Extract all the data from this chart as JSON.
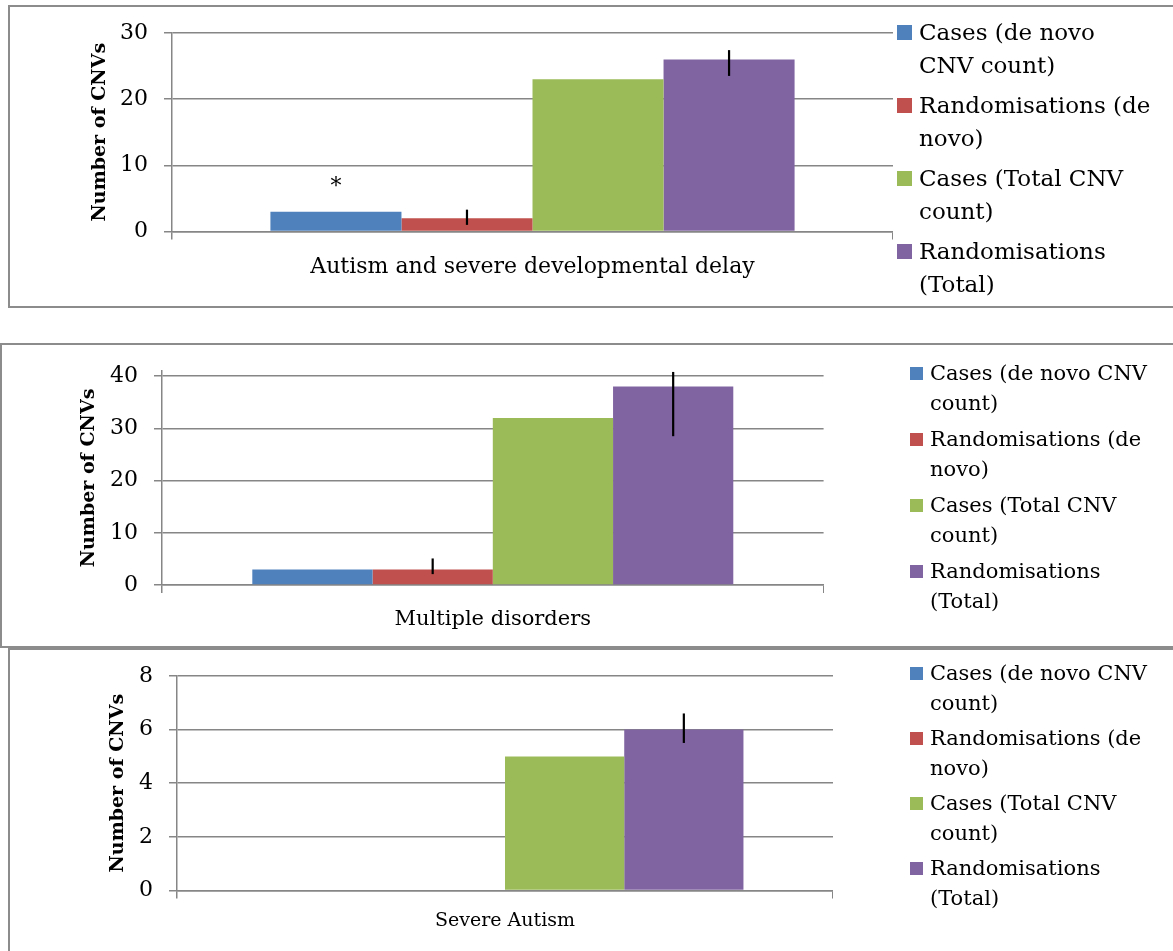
{
  "chart_data": [
    {
      "type": "bar",
      "ylabel": "Number of CNVs",
      "categories": [
        "Autism and severe developmental delay"
      ],
      "series": [
        {
          "name": "Cases (de novo CNV count)",
          "color": "#4f81bd",
          "values": [
            3
          ]
        },
        {
          "name": "Randomisations (de novo)",
          "color": "#c0504d",
          "values": [
            2
          ],
          "errors": [
            [
              1,
              3.3
            ]
          ]
        },
        {
          "name": "Cases (Total CNV count)",
          "color": "#9bbb59",
          "values": [
            23
          ]
        },
        {
          "name": "Randomisations (Total)",
          "color": "#8064a2",
          "values": [
            26
          ],
          "errors": [
            [
              23.5,
              27.4
            ]
          ]
        }
      ],
      "ylim": [
        0,
        30
      ],
      "yticks": [
        0,
        10,
        20,
        30
      ],
      "grid": "y",
      "legend": "right",
      "annotations": [
        "*"
      ]
    },
    {
      "type": "bar",
      "ylabel": "Number of CNVs",
      "categories": [
        "Multiple disorders"
      ],
      "series": [
        {
          "name": "Cases (de novo CNV count)",
          "color": "#4f81bd",
          "values": [
            3
          ]
        },
        {
          "name": "Randomisations (de novo)",
          "color": "#c0504d",
          "values": [
            3
          ],
          "errors": [
            [
              2.1,
              5.1
            ]
          ]
        },
        {
          "name": "Cases (Total CNV count)",
          "color": "#9bbb59",
          "values": [
            32
          ]
        },
        {
          "name": "Randomisations (Total)",
          "color": "#8064a2",
          "values": [
            38
          ],
          "errors": [
            [
              28.5,
              40.8
            ]
          ]
        }
      ],
      "ylim": [
        0,
        41
      ],
      "yticks": [
        0,
        10,
        20,
        30,
        40
      ],
      "grid": "y",
      "legend": "right"
    },
    {
      "type": "bar",
      "ylabel": "Number of CNVs",
      "categories": [
        "Severe Autism"
      ],
      "series": [
        {
          "name": "Cases (de novo CNV count)",
          "color": "#4f81bd",
          "values": [
            0
          ]
        },
        {
          "name": "Randomisations (de novo)",
          "color": "#c0504d",
          "values": [
            0
          ]
        },
        {
          "name": "Cases (Total CNV count)",
          "color": "#9bbb59",
          "values": [
            5
          ]
        },
        {
          "name": "Randomisations (Total)",
          "color": "#8064a2",
          "values": [
            6
          ],
          "errors": [
            [
              5.5,
              6.6
            ]
          ]
        }
      ],
      "ylim": [
        0,
        8
      ],
      "yticks": [
        0,
        2,
        4,
        6,
        8
      ],
      "grid": "y",
      "legend": "right"
    }
  ]
}
